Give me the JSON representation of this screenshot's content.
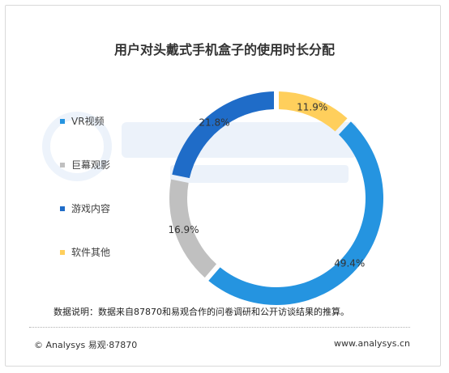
{
  "title": "用户对头戴式手机盒子的使用时长分配",
  "chart_data": {
    "type": "pie",
    "donut": true,
    "categories": [
      "VR视频",
      "巨幕观影",
      "游戏内容",
      "软件其他"
    ],
    "values": [
      49.4,
      16.9,
      21.8,
      11.9
    ],
    "labels": [
      "49.4%",
      "16.9%",
      "21.8%",
      "11.9%"
    ],
    "colors": [
      "#2594e0",
      "#c0c0c0",
      "#1f6cc8",
      "#ffcf5c"
    ],
    "legend_placement": "left"
  },
  "legend": [
    {
      "label": "VR视频",
      "color": "#2594e0"
    },
    {
      "label": "巨幕观影",
      "color": "#c0c0c0"
    },
    {
      "label": "游戏内容",
      "color": "#1f6cc8"
    },
    {
      "label": "软件其他",
      "color": "#ffcf5c"
    }
  ],
  "note": "数据说明：数据来自87870和易观合作的问卷调研和公开访谈结果的推算。",
  "footer": {
    "copyright": "© Analysys 易观·87870",
    "site": "www.analysys.cn"
  }
}
